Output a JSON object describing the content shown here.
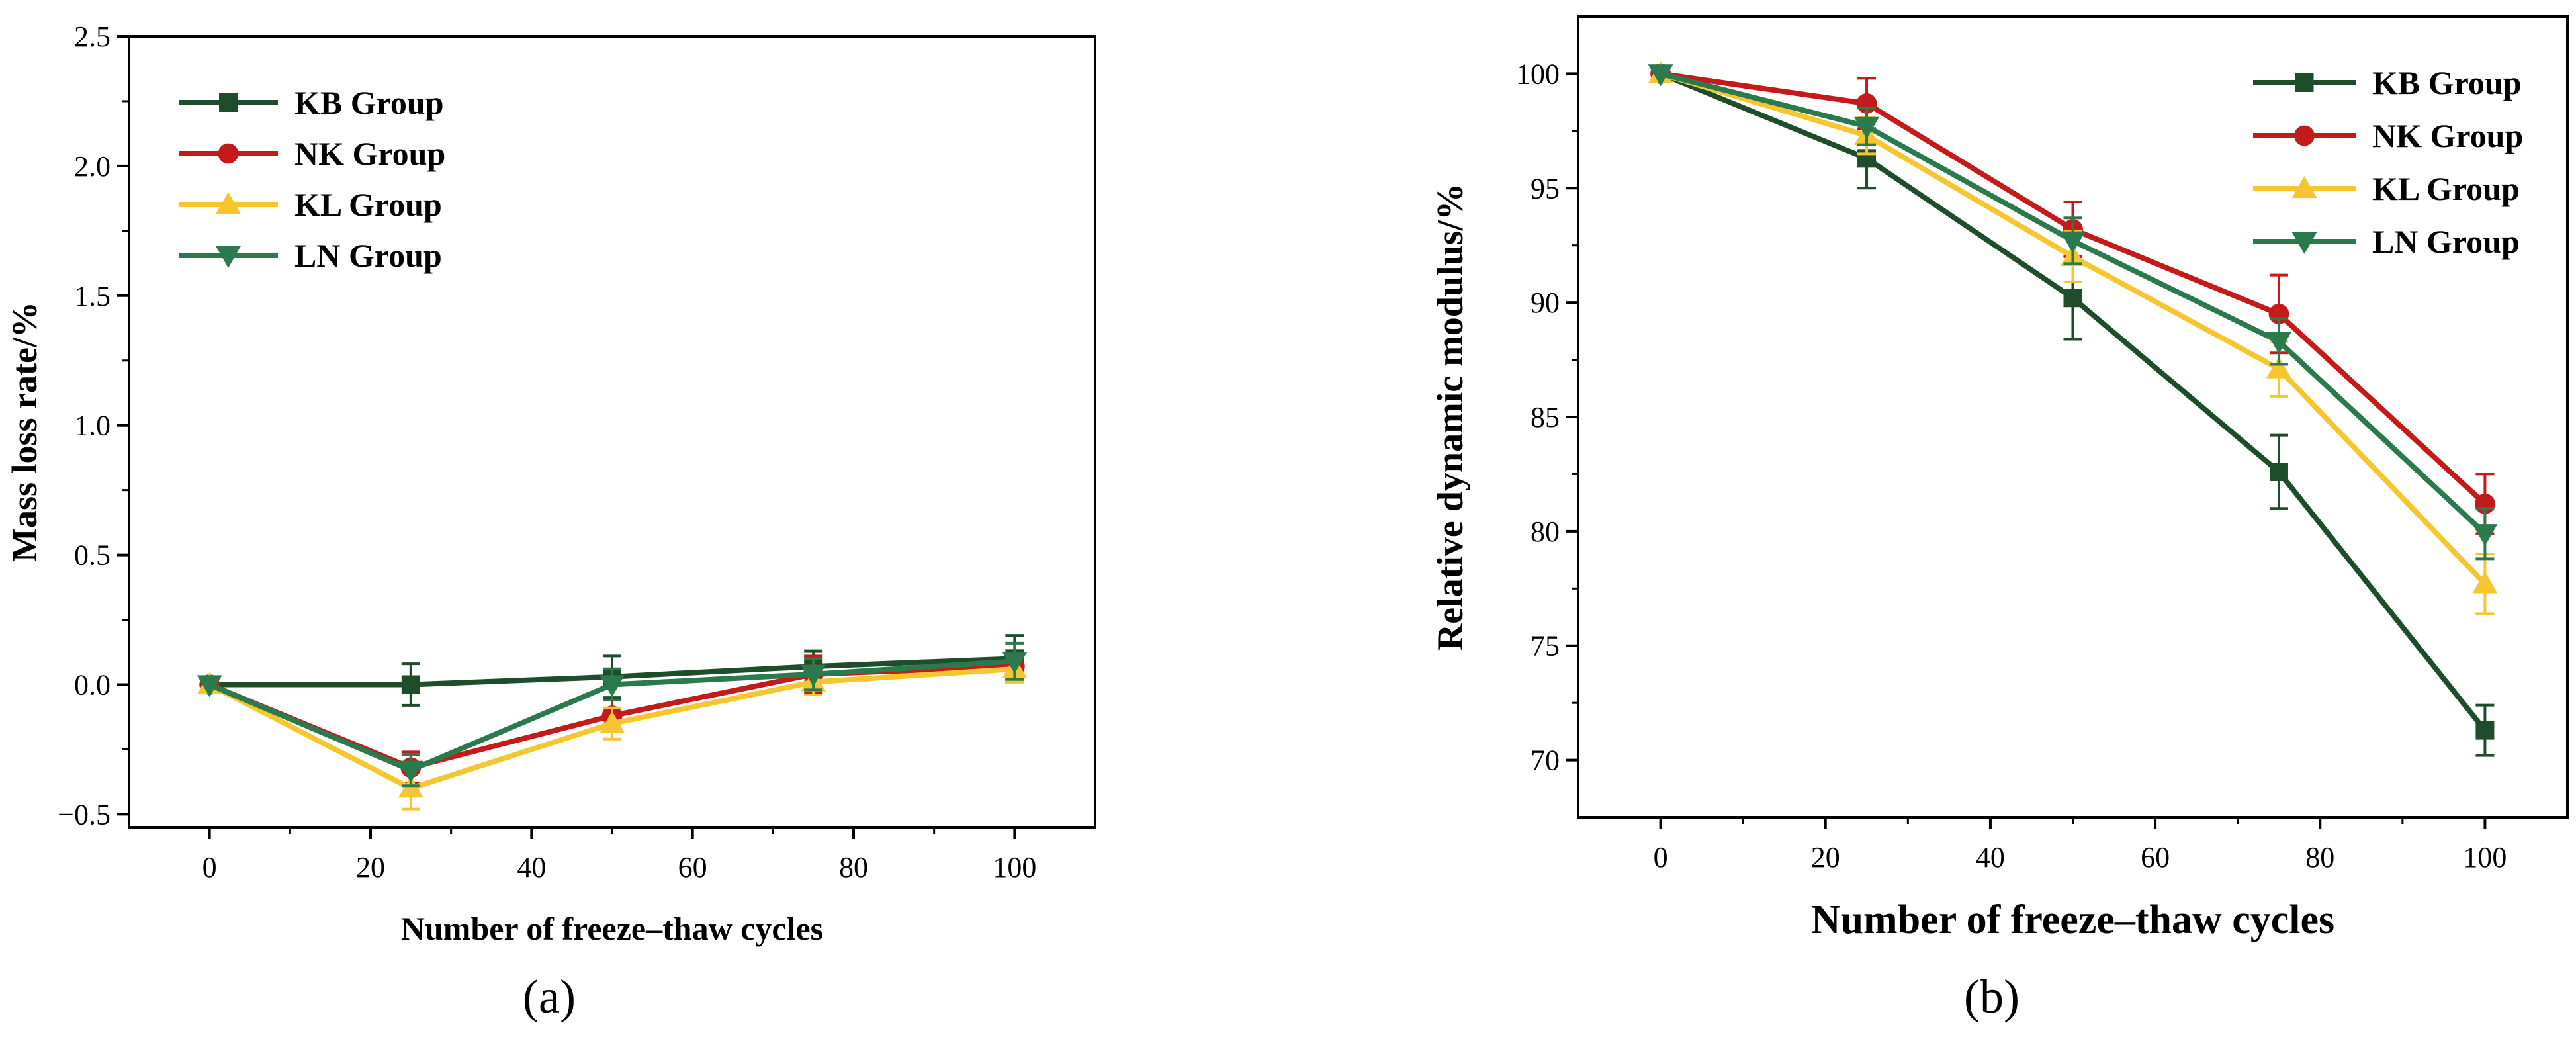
{
  "chart_data": [
    {
      "type": "line",
      "panel_label": "(a)",
      "xlabel": "Number of freeze–thaw cycles",
      "ylabel": "Mass loss rate/%",
      "xlim": [
        -10,
        110
      ],
      "ylim": [
        -0.55,
        2.5
      ],
      "xticks": [
        0,
        20,
        40,
        60,
        80,
        100
      ],
      "xtick_labels": [
        "0",
        "20",
        "40",
        "60",
        "80",
        "100"
      ],
      "yticks": [
        -0.5,
        0.0,
        0.5,
        1.0,
        1.5,
        2.0,
        2.5
      ],
      "ytick_labels": [
        "−0.5",
        "0.0",
        "0.5",
        "1.0",
        "1.5",
        "2.0",
        "2.5"
      ],
      "legend_position": "top-left",
      "x": [
        0,
        25,
        50,
        75,
        100
      ],
      "series": [
        {
          "name": "KB Group",
          "color": "#1e4d2b",
          "marker": "square",
          "values": [
            0.0,
            0.0,
            0.03,
            0.07,
            0.1
          ],
          "errors": [
            0.0,
            0.08,
            0.08,
            0.06,
            0.09
          ]
        },
        {
          "name": "NK Group",
          "color": "#c41a1a",
          "marker": "circle",
          "values": [
            0.0,
            -0.32,
            -0.12,
            0.04,
            0.07
          ],
          "errors": [
            0.0,
            0.06,
            0.06,
            0.07,
            0.05
          ]
        },
        {
          "name": "KL Group",
          "color": "#f5c630",
          "marker": "triangle-up",
          "values": [
            0.0,
            -0.4,
            -0.15,
            0.01,
            0.06
          ],
          "errors": [
            0.0,
            0.08,
            0.06,
            0.05,
            0.05
          ]
        },
        {
          "name": "LN Group",
          "color": "#2a7a4e",
          "marker": "triangle-down",
          "values": [
            0.0,
            -0.33,
            0.0,
            0.04,
            0.09
          ],
          "errors": [
            0.0,
            0.06,
            0.06,
            0.06,
            0.07
          ]
        }
      ]
    },
    {
      "type": "line",
      "panel_label": "(b)",
      "xlabel": "Number of freeze–thaw cycles",
      "ylabel": "Relative dynamic modulus/%",
      "xlim": [
        -10,
        110
      ],
      "ylim": [
        67.5,
        102.5
      ],
      "xticks": [
        0,
        20,
        40,
        60,
        80,
        100
      ],
      "xtick_labels": [
        "0",
        "20",
        "40",
        "60",
        "80",
        "100"
      ],
      "yticks": [
        70,
        75,
        80,
        85,
        90,
        95,
        100
      ],
      "ytick_labels": [
        "70",
        "75",
        "80",
        "85",
        "90",
        "95",
        "100"
      ],
      "legend_position": "top-right",
      "x": [
        0,
        25,
        50,
        75,
        100
      ],
      "series": [
        {
          "name": "KB Group",
          "color": "#1e4d2b",
          "marker": "square",
          "values": [
            100,
            96.3,
            90.2,
            82.6,
            71.3
          ],
          "errors": [
            0,
            1.3,
            1.8,
            1.6,
            1.1
          ]
        },
        {
          "name": "NK Group",
          "color": "#c41a1a",
          "marker": "circle",
          "values": [
            100,
            98.7,
            93.2,
            89.5,
            81.2
          ],
          "errors": [
            0,
            1.1,
            1.2,
            1.7,
            1.3
          ]
        },
        {
          "name": "KL Group",
          "color": "#f5c630",
          "marker": "triangle-up",
          "values": [
            100,
            97.3,
            92.0,
            87.1,
            77.7
          ],
          "errors": [
            0,
            0.8,
            1.1,
            1.2,
            1.3
          ]
        },
        {
          "name": "LN Group",
          "color": "#2a7a4e",
          "marker": "triangle-down",
          "values": [
            100,
            97.7,
            92.7,
            88.3,
            79.9
          ],
          "errors": [
            0,
            0.8,
            1.0,
            1.0,
            1.1
          ]
        }
      ]
    }
  ]
}
